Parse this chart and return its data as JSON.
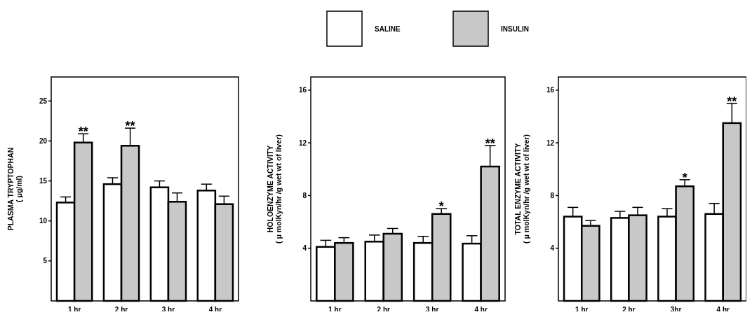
{
  "chart_data": [
    {
      "type": "bar",
      "ylabel": "PLASMA TRYPTOPHAN\n( μg/ml)",
      "categories": [
        "1 hr",
        "2 hr",
        "3 hr",
        "4 hr"
      ],
      "legend": "top",
      "ylim": [
        0,
        28
      ],
      "yticks": [
        5,
        10,
        15,
        20,
        25
      ],
      "series": [
        {
          "name": "SALINE",
          "color": "#ffffff",
          "values": [
            12.3,
            14.6,
            14.2,
            13.8
          ],
          "errors": [
            0.7,
            0.8,
            0.8,
            0.8
          ]
        },
        {
          "name": "INSULIN",
          "color": "#c8c8c8",
          "values": [
            19.8,
            19.4,
            12.4,
            12.1
          ],
          "errors": [
            1.1,
            2.2,
            1.1,
            1.0
          ]
        }
      ],
      "annotations": [
        {
          "text": "**",
          "x": "1 hr",
          "y": 19.8
        },
        {
          "text": "**",
          "x": "2 hr",
          "y": 19.4
        }
      ]
    },
    {
      "type": "bar",
      "ylabel": "HOLOENZYME ACTIVITY\n( μ molKyn/hr /g wet wt of liver)",
      "categories": [
        "1 hr",
        "2 hr",
        "3 hr",
        "4 hr"
      ],
      "ylim": [
        0,
        17
      ],
      "yticks": [
        4,
        8,
        12,
        16
      ],
      "series": [
        {
          "color": "#ffffff",
          "values": [
            4.1,
            4.5,
            4.4,
            4.35
          ],
          "errors": [
            0.5,
            0.5,
            0.5,
            0.6
          ]
        },
        {
          "color": "#c8c8c8",
          "values": [
            4.4,
            5.1,
            6.6,
            10.2
          ],
          "errors": [
            0.4,
            0.4,
            0.4,
            1.6
          ]
        }
      ],
      "annotations": [
        {
          "text": "*",
          "x": "3 hr",
          "y": 6.6
        },
        {
          "text": "**",
          "x": "4 hr",
          "y": 10.2
        }
      ]
    },
    {
      "type": "bar",
      "ylabel": "TOTAL ENZYME ACTIVITY\n( μ molKyn/hr /g wet wt of liver)",
      "categories": [
        "1 hr",
        "2 hr",
        "3hr",
        "4 hr"
      ],
      "ylim": [
        0,
        17
      ],
      "yticks": [
        4,
        8,
        12,
        16
      ],
      "series": [
        {
          "color": "#ffffff",
          "values": [
            6.4,
            6.3,
            6.4,
            6.6
          ],
          "errors": [
            0.7,
            0.5,
            0.6,
            0.8
          ]
        },
        {
          "color": "#c8c8c8",
          "values": [
            5.7,
            6.5,
            8.7,
            13.5
          ],
          "errors": [
            0.4,
            0.6,
            0.5,
            1.5
          ]
        }
      ],
      "annotations": [
        {
          "text": "*",
          "x": "3hr",
          "y": 8.7
        },
        {
          "text": "**",
          "x": "4 hr",
          "y": 13.5
        }
      ]
    }
  ]
}
